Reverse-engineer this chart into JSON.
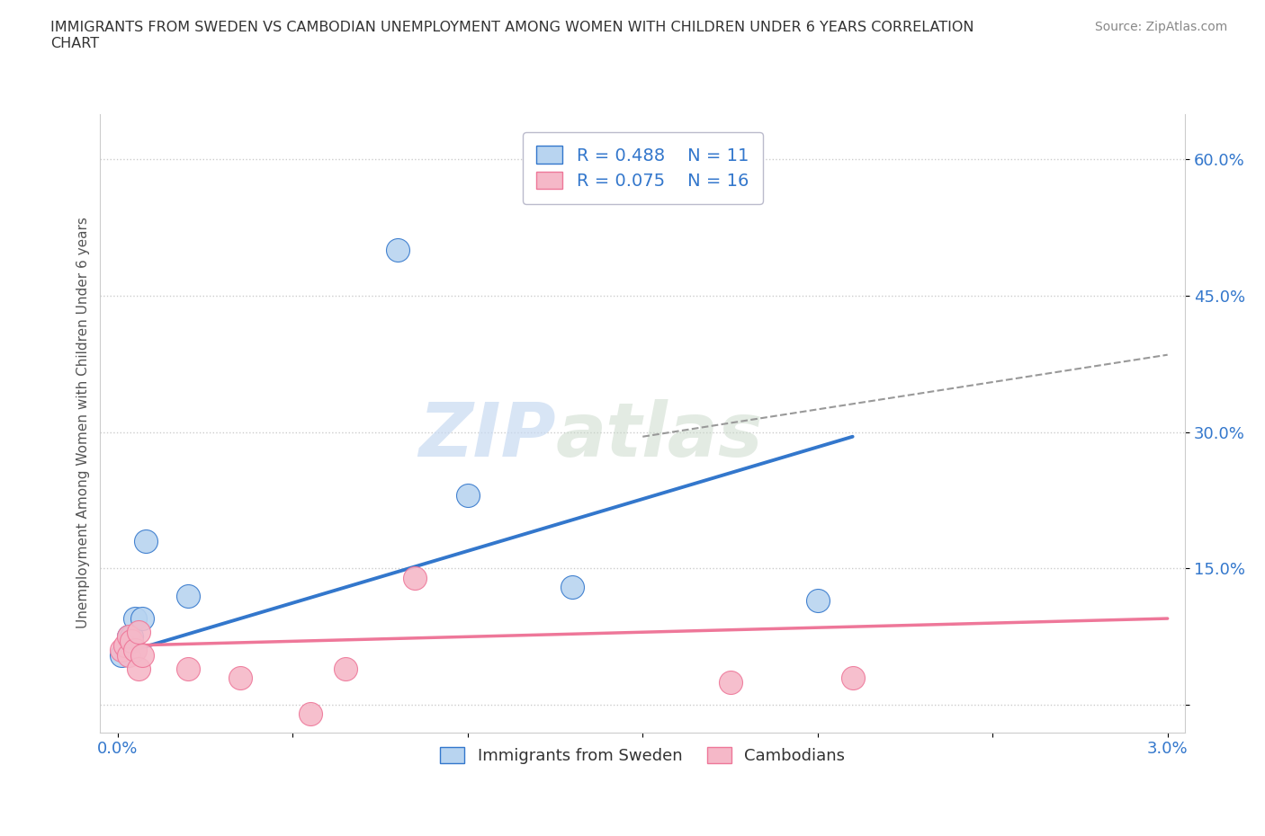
{
  "title": "IMMIGRANTS FROM SWEDEN VS CAMBODIAN UNEMPLOYMENT AMONG WOMEN WITH CHILDREN UNDER 6 YEARS CORRELATION\nCHART",
  "source": "Source: ZipAtlas.com",
  "ylabel": "Unemployment Among Women with Children Under 6 years",
  "xlim": [
    -0.0005,
    0.0305
  ],
  "ylim": [
    -0.03,
    0.65
  ],
  "xticks": [
    0.0,
    0.005,
    0.01,
    0.015,
    0.02,
    0.025,
    0.03
  ],
  "xtick_labels": [
    "0.0%",
    "",
    "",
    "",
    "",
    "",
    "3.0%"
  ],
  "yticks": [
    0.0,
    0.15,
    0.3,
    0.45,
    0.6
  ],
  "ytick_labels": [
    "",
    "15.0%",
    "30.0%",
    "45.0%",
    "60.0%"
  ],
  "sweden_color": "#b8d4f0",
  "cambodian_color": "#f5b8c8",
  "sweden_line_color": "#3377cc",
  "cambodian_line_color": "#ee7799",
  "watermark_zip": "ZIP",
  "watermark_atlas": "atlas",
  "legend_R_sweden": "R = 0.488",
  "legend_N_sweden": "N = 11",
  "legend_R_cambodian": "R = 0.075",
  "legend_N_cambodian": "N = 16",
  "sweden_points_x": [
    0.0001,
    0.0003,
    0.0004,
    0.0005,
    0.0007,
    0.0008,
    0.002,
    0.008,
    0.01,
    0.013,
    0.02
  ],
  "sweden_points_y": [
    0.055,
    0.075,
    0.075,
    0.095,
    0.095,
    0.18,
    0.12,
    0.5,
    0.23,
    0.13,
    0.115
  ],
  "cambodian_points_x": [
    0.0001,
    0.0002,
    0.0003,
    0.0003,
    0.0004,
    0.0005,
    0.0006,
    0.0006,
    0.0007,
    0.002,
    0.0035,
    0.0055,
    0.0065,
    0.0085,
    0.0175,
    0.021
  ],
  "cambodian_points_y": [
    0.06,
    0.065,
    0.075,
    0.055,
    0.07,
    0.06,
    0.04,
    0.08,
    0.055,
    0.04,
    0.03,
    -0.01,
    0.04,
    0.14,
    0.025,
    0.03
  ],
  "sweden_line_x": [
    0.0,
    0.021
  ],
  "sweden_line_y": [
    0.055,
    0.295
  ],
  "cambodian_line_x": [
    0.0,
    0.03
  ],
  "cambodian_line_y": [
    0.065,
    0.095
  ],
  "gray_line_x": [
    0.015,
    0.03
  ],
  "gray_line_y": [
    0.295,
    0.385
  ]
}
